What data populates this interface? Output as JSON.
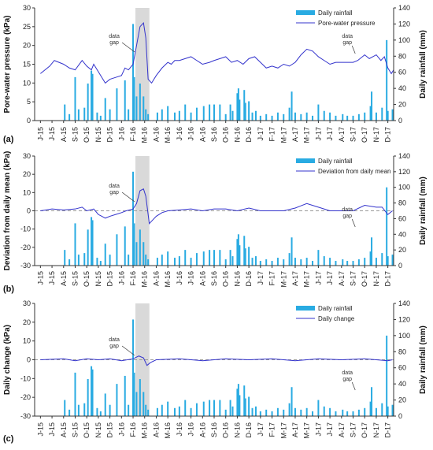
{
  "x_labels": [
    "J-15",
    "J-15",
    "A-15",
    "S-15",
    "O-15",
    "N-15",
    "D-15",
    "J-16",
    "F-16",
    "M-16",
    "A-16",
    "M-16",
    "J-16",
    "J-16",
    "A-16",
    "S-16",
    "O-16",
    "N-16",
    "D-16",
    "J-17",
    "F-17",
    "M-17",
    "A-17",
    "M-17",
    "J-17",
    "J-17",
    "A-17",
    "S-17",
    "O-17",
    "N-17",
    "D-17"
  ],
  "gap_label": "data gap",
  "colors": {
    "rain": "#29ABE2",
    "line": "#3333CC",
    "shade": "#D9D9D9",
    "zero": "#999999"
  },
  "chart_data": [
    {
      "panel": "(a)",
      "type": "line",
      "ylabel": "Pore-water pressure (kPa)",
      "y2label": "Daily rainfall (mm)",
      "ylim": [
        0,
        30
      ],
      "y2lim": [
        0,
        140
      ],
      "yticks": [
        "0",
        "5",
        "10",
        "15",
        "20",
        "25",
        "30"
      ],
      "y2ticks": [
        "0",
        "20",
        "40",
        "60",
        "80",
        "100",
        "120",
        "140"
      ],
      "legend": [
        "Daily rainfall",
        "Pore-water pressure"
      ],
      "line_points": [
        [
          0,
          12.5
        ],
        [
          0.8,
          14.5
        ],
        [
          1.2,
          16
        ],
        [
          2,
          15
        ],
        [
          2.5,
          14
        ],
        [
          3,
          13.5
        ],
        [
          3.6,
          16
        ],
        [
          4,
          14.5
        ],
        [
          4.4,
          13.5
        ],
        [
          4.6,
          15
        ],
        [
          5,
          13
        ],
        [
          5.6,
          10
        ],
        [
          6,
          11
        ],
        [
          6.5,
          11.5
        ],
        [
          7,
          12
        ],
        [
          7.3,
          14
        ],
        [
          7.6,
          13.5
        ],
        [
          8,
          15
        ],
        [
          8.3,
          20
        ],
        [
          8.6,
          25
        ],
        [
          8.9,
          26
        ],
        [
          9.1,
          22
        ],
        [
          9.3,
          11
        ],
        [
          9.6,
          10
        ],
        [
          10,
          12
        ],
        [
          10.5,
          14
        ],
        [
          11,
          15.5
        ],
        [
          11.3,
          15
        ],
        [
          11.6,
          16
        ],
        [
          12,
          16
        ],
        [
          12.5,
          16.5
        ],
        [
          13,
          17
        ],
        [
          13.5,
          16
        ],
        [
          14,
          15
        ],
        [
          14.6,
          15.5
        ],
        [
          15,
          16
        ],
        [
          15.5,
          16.5
        ],
        [
          16,
          17
        ],
        [
          16.5,
          15.5
        ],
        [
          17,
          16
        ],
        [
          17.5,
          15
        ],
        [
          18,
          16.5
        ],
        [
          18.5,
          17
        ],
        [
          19,
          15.5
        ],
        [
          19.5,
          14
        ],
        [
          20,
          14.5
        ],
        [
          20.5,
          14
        ],
        [
          21,
          15
        ],
        [
          21.5,
          14.5
        ],
        [
          22,
          15.5
        ],
        [
          22.5,
          17.5
        ],
        [
          23,
          19
        ],
        [
          23.5,
          18.5
        ],
        [
          24,
          17
        ],
        [
          24.5,
          16
        ],
        [
          25,
          15
        ],
        [
          25.5,
          15.5
        ],
        [
          26,
          15.5
        ],
        [
          26.4,
          15.5
        ],
        [
          27,
          15.5
        ],
        [
          27.4,
          16
        ],
        [
          28,
          17.5
        ],
        [
          28.4,
          16.5
        ],
        [
          29,
          17.5
        ],
        [
          29.4,
          16
        ],
        [
          29.7,
          17
        ],
        [
          30,
          14
        ],
        [
          30.3,
          12.5
        ],
        [
          30.5,
          13.5
        ]
      ],
      "rain_events": [
        [
          2.1,
          20
        ],
        [
          2.5,
          8
        ],
        [
          3.0,
          54
        ],
        [
          3.3,
          14
        ],
        [
          3.8,
          16
        ],
        [
          4.1,
          46
        ],
        [
          4.4,
          62
        ],
        [
          4.5,
          58
        ],
        [
          4.9,
          10
        ],
        [
          5.2,
          6
        ],
        [
          5.6,
          28
        ],
        [
          6.0,
          14
        ],
        [
          6.6,
          40
        ],
        [
          7.3,
          50
        ],
        [
          7.6,
          14
        ],
        [
          8.0,
          120
        ],
        [
          8.1,
          54
        ],
        [
          8.3,
          30
        ],
        [
          8.6,
          46
        ],
        [
          8.9,
          30
        ],
        [
          9.1,
          14
        ],
        [
          9.3,
          8
        ],
        [
          10.1,
          10
        ],
        [
          10.5,
          14
        ],
        [
          11.0,
          18
        ],
        [
          11.6,
          10
        ],
        [
          12.0,
          12
        ],
        [
          12.5,
          20
        ],
        [
          13.0,
          10
        ],
        [
          13.5,
          16
        ],
        [
          14.1,
          18
        ],
        [
          14.6,
          20
        ],
        [
          15.0,
          20
        ],
        [
          15.5,
          20
        ],
        [
          16.0,
          8
        ],
        [
          16.4,
          20
        ],
        [
          16.6,
          12
        ],
        [
          17.0,
          34
        ],
        [
          17.1,
          40
        ],
        [
          17.2,
          26
        ],
        [
          17.6,
          38
        ],
        [
          17.7,
          22
        ],
        [
          18.0,
          24
        ],
        [
          18.3,
          10
        ],
        [
          18.6,
          12
        ],
        [
          19.0,
          6
        ],
        [
          19.5,
          8
        ],
        [
          20.0,
          6
        ],
        [
          20.5,
          10
        ],
        [
          21.0,
          8
        ],
        [
          21.5,
          16
        ],
        [
          21.7,
          36
        ],
        [
          22.0,
          10
        ],
        [
          22.5,
          8
        ],
        [
          23.0,
          10
        ],
        [
          23.5,
          6
        ],
        [
          24.0,
          20
        ],
        [
          24.5,
          12
        ],
        [
          25.0,
          10
        ],
        [
          25.5,
          6
        ],
        [
          26.1,
          8
        ],
        [
          26.5,
          6
        ],
        [
          27.0,
          6
        ],
        [
          27.5,
          8
        ],
        [
          28.0,
          10
        ],
        [
          28.5,
          18
        ],
        [
          28.6,
          36
        ],
        [
          29.0,
          10
        ],
        [
          29.5,
          16
        ],
        [
          29.9,
          100
        ],
        [
          30.0,
          12
        ],
        [
          30.4,
          14
        ]
      ]
    },
    {
      "panel": "(b)",
      "type": "line",
      "ylabel": "Deviation from daily mean (kPa)",
      "y2label": "Daily rainfall (mm)",
      "ylim": [
        -30,
        30
      ],
      "y2lim": [
        0,
        140
      ],
      "yticks": [
        "-30",
        "-20",
        "-10",
        "0",
        "10",
        "20",
        "30"
      ],
      "y2ticks": [
        "0",
        "20",
        "40",
        "60",
        "80",
        "100",
        "120",
        "140"
      ],
      "legend": [
        "Daily rainfall",
        "Deviation from daily mean"
      ],
      "line_points": [
        [
          0,
          0
        ],
        [
          1,
          1
        ],
        [
          2,
          0.5
        ],
        [
          3,
          1
        ],
        [
          3.6,
          2
        ],
        [
          4,
          0
        ],
        [
          4.6,
          1
        ],
        [
          5,
          -2
        ],
        [
          5.6,
          -4
        ],
        [
          6,
          -3
        ],
        [
          6.5,
          -2
        ],
        [
          7,
          -1
        ],
        [
          7.4,
          0
        ],
        [
          8,
          1
        ],
        [
          8.3,
          4
        ],
        [
          8.6,
          11
        ],
        [
          8.9,
          12
        ],
        [
          9.1,
          8
        ],
        [
          9.4,
          -7
        ],
        [
          9.7,
          -5
        ],
        [
          10,
          -3
        ],
        [
          10.5,
          -1
        ],
        [
          11,
          0
        ],
        [
          12,
          0.5
        ],
        [
          13,
          1
        ],
        [
          14,
          0
        ],
        [
          15,
          1
        ],
        [
          16,
          1
        ],
        [
          17,
          0
        ],
        [
          18,
          1.5
        ],
        [
          19,
          0
        ],
        [
          20,
          0
        ],
        [
          21,
          0
        ],
        [
          22,
          1.5
        ],
        [
          23,
          4
        ],
        [
          24,
          2
        ],
        [
          25,
          0
        ],
        [
          26,
          0
        ],
        [
          27,
          0
        ],
        [
          28,
          3
        ],
        [
          29,
          2
        ],
        [
          29.5,
          2
        ],
        [
          30,
          -2
        ],
        [
          30.4,
          0
        ]
      ],
      "rain_events": [
        [
          2.1,
          20
        ],
        [
          2.5,
          8
        ],
        [
          3.0,
          54
        ],
        [
          3.3,
          14
        ],
        [
          3.8,
          16
        ],
        [
          4.1,
          46
        ],
        [
          4.4,
          62
        ],
        [
          4.5,
          58
        ],
        [
          4.9,
          10
        ],
        [
          5.2,
          6
        ],
        [
          5.6,
          28
        ],
        [
          6.0,
          14
        ],
        [
          6.6,
          40
        ],
        [
          7.3,
          50
        ],
        [
          7.6,
          14
        ],
        [
          8.0,
          120
        ],
        [
          8.1,
          54
        ],
        [
          8.3,
          30
        ],
        [
          8.6,
          46
        ],
        [
          8.9,
          30
        ],
        [
          9.1,
          14
        ],
        [
          9.3,
          8
        ],
        [
          10.1,
          10
        ],
        [
          10.5,
          14
        ],
        [
          11.0,
          18
        ],
        [
          11.6,
          10
        ],
        [
          12.0,
          12
        ],
        [
          12.5,
          20
        ],
        [
          13.0,
          10
        ],
        [
          13.5,
          16
        ],
        [
          14.1,
          18
        ],
        [
          14.6,
          20
        ],
        [
          15.0,
          20
        ],
        [
          15.5,
          20
        ],
        [
          16.0,
          8
        ],
        [
          16.4,
          20
        ],
        [
          16.6,
          12
        ],
        [
          17.0,
          34
        ],
        [
          17.1,
          40
        ],
        [
          17.2,
          26
        ],
        [
          17.6,
          38
        ],
        [
          17.7,
          22
        ],
        [
          18.0,
          24
        ],
        [
          18.3,
          10
        ],
        [
          18.6,
          12
        ],
        [
          19.0,
          6
        ],
        [
          19.5,
          8
        ],
        [
          20.0,
          6
        ],
        [
          20.5,
          10
        ],
        [
          21.0,
          8
        ],
        [
          21.5,
          16
        ],
        [
          21.7,
          36
        ],
        [
          22.0,
          10
        ],
        [
          22.5,
          8
        ],
        [
          23.0,
          10
        ],
        [
          23.5,
          6
        ],
        [
          24.0,
          20
        ],
        [
          24.5,
          12
        ],
        [
          25.0,
          10
        ],
        [
          25.5,
          6
        ],
        [
          26.1,
          8
        ],
        [
          26.5,
          6
        ],
        [
          27.0,
          6
        ],
        [
          27.5,
          8
        ],
        [
          28.0,
          10
        ],
        [
          28.5,
          18
        ],
        [
          28.6,
          36
        ],
        [
          29.0,
          10
        ],
        [
          29.5,
          16
        ],
        [
          29.9,
          100
        ],
        [
          30.0,
          12
        ],
        [
          30.4,
          14
        ]
      ]
    },
    {
      "panel": "(c)",
      "type": "line",
      "ylabel": "Daily change (kPa)",
      "y2label": "Daily rainfall (mm)",
      "ylim": [
        -30,
        30
      ],
      "y2lim": [
        0,
        140
      ],
      "yticks": [
        "-30",
        "-20",
        "-10",
        "0",
        "10",
        "20",
        "30"
      ],
      "y2ticks": [
        "0",
        "20",
        "40",
        "60",
        "80",
        "100",
        "120",
        "140"
      ],
      "legend": [
        "Daily rainfall",
        "Daily change"
      ],
      "line_points": [
        [
          0,
          0
        ],
        [
          2,
          0.5
        ],
        [
          3,
          -0.5
        ],
        [
          4,
          0.5
        ],
        [
          5,
          0
        ],
        [
          6,
          0.5
        ],
        [
          7,
          -0.5
        ],
        [
          8,
          0.5
        ],
        [
          8.5,
          2
        ],
        [
          8.9,
          1
        ],
        [
          9.2,
          -3
        ],
        [
          9.5,
          -1.5
        ],
        [
          10,
          0
        ],
        [
          12,
          0.5
        ],
        [
          14,
          -0.5
        ],
        [
          16,
          0.5
        ],
        [
          18,
          0
        ],
        [
          20,
          0.5
        ],
        [
          22,
          -0.5
        ],
        [
          24,
          0.5
        ],
        [
          26,
          0
        ],
        [
          28,
          0.5
        ],
        [
          30,
          -0.5
        ],
        [
          30.4,
          0
        ]
      ],
      "rain_events": [
        [
          2.1,
          20
        ],
        [
          2.5,
          8
        ],
        [
          3.0,
          54
        ],
        [
          3.3,
          14
        ],
        [
          3.8,
          16
        ],
        [
          4.1,
          46
        ],
        [
          4.4,
          62
        ],
        [
          4.5,
          58
        ],
        [
          4.9,
          10
        ],
        [
          5.2,
          6
        ],
        [
          5.6,
          28
        ],
        [
          6.0,
          14
        ],
        [
          6.6,
          40
        ],
        [
          7.3,
          50
        ],
        [
          7.6,
          14
        ],
        [
          8.0,
          120
        ],
        [
          8.1,
          54
        ],
        [
          8.3,
          30
        ],
        [
          8.6,
          46
        ],
        [
          8.9,
          30
        ],
        [
          9.1,
          14
        ],
        [
          9.3,
          8
        ],
        [
          10.1,
          10
        ],
        [
          10.5,
          14
        ],
        [
          11.0,
          18
        ],
        [
          11.6,
          10
        ],
        [
          12.0,
          12
        ],
        [
          12.5,
          20
        ],
        [
          13.0,
          10
        ],
        [
          13.5,
          16
        ],
        [
          14.1,
          18
        ],
        [
          14.6,
          20
        ],
        [
          15.0,
          20
        ],
        [
          15.5,
          20
        ],
        [
          16.0,
          8
        ],
        [
          16.4,
          20
        ],
        [
          16.6,
          12
        ],
        [
          17.0,
          34
        ],
        [
          17.1,
          40
        ],
        [
          17.2,
          26
        ],
        [
          17.6,
          38
        ],
        [
          17.7,
          22
        ],
        [
          18.0,
          24
        ],
        [
          18.3,
          10
        ],
        [
          18.6,
          12
        ],
        [
          19.0,
          6
        ],
        [
          19.5,
          8
        ],
        [
          20.0,
          6
        ],
        [
          20.5,
          10
        ],
        [
          21.0,
          8
        ],
        [
          21.5,
          16
        ],
        [
          21.7,
          36
        ],
        [
          22.0,
          10
        ],
        [
          22.5,
          8
        ],
        [
          23.0,
          10
        ],
        [
          23.5,
          6
        ],
        [
          24.0,
          20
        ],
        [
          24.5,
          12
        ],
        [
          25.0,
          10
        ],
        [
          25.5,
          6
        ],
        [
          26.1,
          8
        ],
        [
          26.5,
          6
        ],
        [
          27.0,
          6
        ],
        [
          27.5,
          8
        ],
        [
          28.0,
          10
        ],
        [
          28.5,
          18
        ],
        [
          28.6,
          36
        ],
        [
          29.0,
          10
        ],
        [
          29.5,
          16
        ],
        [
          29.9,
          100
        ],
        [
          30.0,
          12
        ],
        [
          30.4,
          14
        ]
      ]
    }
  ]
}
